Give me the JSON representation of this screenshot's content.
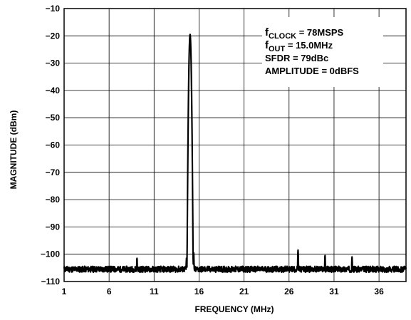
{
  "chart_data": {
    "type": "line",
    "title": "",
    "xlabel": "FREQUENCY (MHz)",
    "ylabel": "MAGNITUDE (dBm)",
    "xlim": [
      1,
      39
    ],
    "ylim": [
      -110,
      -10
    ],
    "x_ticks": [
      "1",
      "6",
      "11",
      "16",
      "21",
      "26",
      "31",
      "36"
    ],
    "y_ticks": [
      "−10",
      "−20",
      "−30",
      "−40",
      "−50",
      "−60",
      "−70",
      "−80",
      "−90",
      "−100",
      "−110"
    ],
    "grid": true,
    "annotation": {
      "clock_sub": "CLOCK",
      "clock_value": " = 78MSPS",
      "out_sub": "OUT",
      "out_value": " = 15.0MHz",
      "sfdr": "SFDR = 79dBc",
      "amplitude": "AMPLITUDE = 0dBFS"
    },
    "series": [
      {
        "noise_floor_dbm": -105.5,
        "peaks": [
          {
            "x": 15.0,
            "y": -19.5
          },
          {
            "x": 15.4,
            "y": -99.5
          },
          {
            "x": 14.6,
            "y": -101.5
          },
          {
            "x": 9.1,
            "y": -101.5
          },
          {
            "x": 27.0,
            "y": -98.5
          },
          {
            "x": 30.0,
            "y": -100.5
          },
          {
            "x": 33.0,
            "y": -101
          }
        ]
      }
    ]
  }
}
